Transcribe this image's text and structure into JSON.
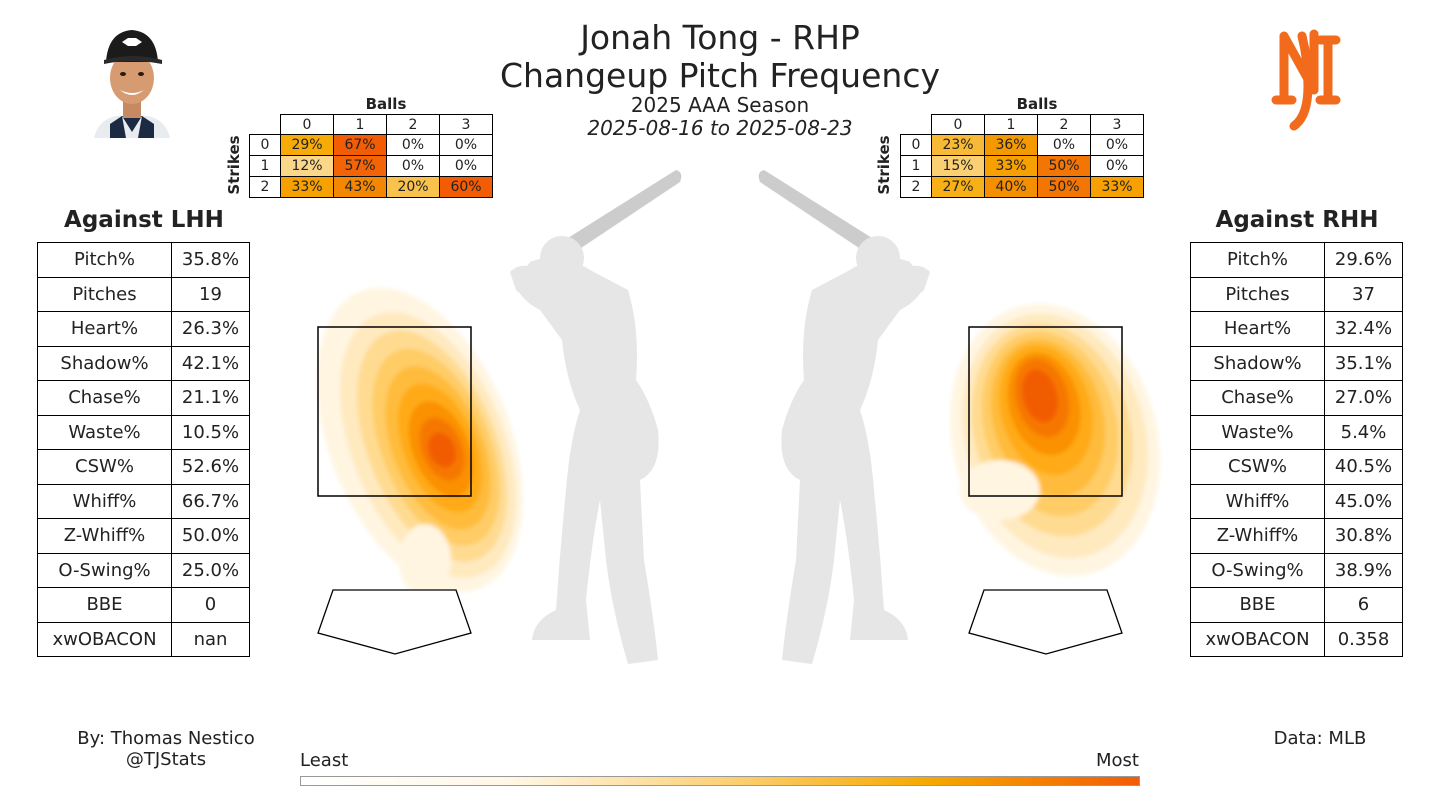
{
  "header": {
    "title_line1": "Jonah Tong - RHP",
    "title_line2": "Changeup Pitch Frequency",
    "season": "2025 AAA Season",
    "date_range": "2025-08-16 to 2025-08-23"
  },
  "colors": {
    "low": "#fff7e6",
    "mid": "#f6a800",
    "high": "#f25c05",
    "zone": "#000000",
    "silhouette": "#e6e6e6"
  },
  "left": {
    "title": "Against LHH",
    "stats": [
      {
        "label": "Pitch%",
        "value": "35.8%"
      },
      {
        "label": "Pitches",
        "value": "19"
      },
      {
        "label": "Heart%",
        "value": "26.3%"
      },
      {
        "label": "Shadow%",
        "value": "42.1%"
      },
      {
        "label": "Chase%",
        "value": "21.1%"
      },
      {
        "label": "Waste%",
        "value": "10.5%"
      },
      {
        "label": "CSW%",
        "value": "52.6%"
      },
      {
        "label": "Whiff%",
        "value": "66.7%"
      },
      {
        "label": "Z-Whiff%",
        "value": "50.0%"
      },
      {
        "label": "O-Swing%",
        "value": "25.0%"
      },
      {
        "label": "BBE",
        "value": "0"
      },
      {
        "label": "xwOBACON",
        "value": "nan"
      }
    ],
    "count_grid": {
      "balls_label": "Balls",
      "strikes_label": "Strikes",
      "ball_headers": [
        "0",
        "1",
        "2",
        "3"
      ],
      "rows": [
        {
          "strikes": "0",
          "cells": [
            "29%",
            "67%",
            "0%",
            "0%"
          ]
        },
        {
          "strikes": "1",
          "cells": [
            "12%",
            "57%",
            "0%",
            "0%"
          ]
        },
        {
          "strikes": "2",
          "cells": [
            "33%",
            "43%",
            "20%",
            "60%"
          ]
        }
      ]
    }
  },
  "right": {
    "title": "Against RHH",
    "stats": [
      {
        "label": "Pitch%",
        "value": "29.6%"
      },
      {
        "label": "Pitches",
        "value": "37"
      },
      {
        "label": "Heart%",
        "value": "32.4%"
      },
      {
        "label": "Shadow%",
        "value": "35.1%"
      },
      {
        "label": "Chase%",
        "value": "27.0%"
      },
      {
        "label": "Waste%",
        "value": "5.4%"
      },
      {
        "label": "CSW%",
        "value": "40.5%"
      },
      {
        "label": "Whiff%",
        "value": "45.0%"
      },
      {
        "label": "Z-Whiff%",
        "value": "30.8%"
      },
      {
        "label": "O-Swing%",
        "value": "38.9%"
      },
      {
        "label": "BBE",
        "value": "6"
      },
      {
        "label": "xwOBACON",
        "value": "0.358"
      }
    ],
    "count_grid": {
      "balls_label": "Balls",
      "strikes_label": "Strikes",
      "ball_headers": [
        "0",
        "1",
        "2",
        "3"
      ],
      "rows": [
        {
          "strikes": "0",
          "cells": [
            "23%",
            "36%",
            "0%",
            "0%"
          ]
        },
        {
          "strikes": "1",
          "cells": [
            "15%",
            "33%",
            "50%",
            "0%"
          ]
        },
        {
          "strikes": "2",
          "cells": [
            "27%",
            "40%",
            "50%",
            "33%"
          ]
        }
      ]
    }
  },
  "legend": {
    "least": "Least",
    "most": "Most"
  },
  "footer": {
    "author": "By: Thomas Nestico",
    "handle": "@TJStats",
    "source": "Data: MLB"
  },
  "chart_data": {
    "type": "heatmap",
    "title": "Changeup Pitch Frequency",
    "panels": [
      {
        "name": "Against LHH",
        "density_peak": "low in zone, glove side",
        "count_frequency": [
          [
            29,
            67,
            0,
            0
          ],
          [
            12,
            57,
            0,
            0
          ],
          [
            33,
            43,
            20,
            60
          ]
        ]
      },
      {
        "name": "Against RHH",
        "density_peak": "middle of zone, slightly high",
        "count_frequency": [
          [
            23,
            36,
            0,
            0
          ],
          [
            15,
            33,
            50,
            0
          ],
          [
            27,
            40,
            50,
            33
          ]
        ]
      }
    ],
    "colorbar": {
      "low_label": "Least",
      "high_label": "Most"
    }
  }
}
